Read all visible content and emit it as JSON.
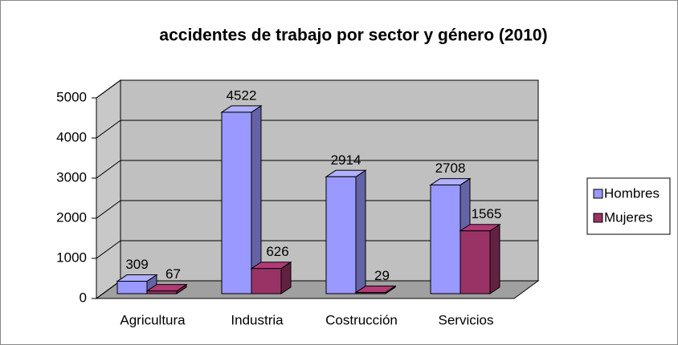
{
  "chart_data": {
    "type": "bar3d",
    "title": "accidentes de trabajo por sector y género (2010)",
    "categories": [
      "Agricultura",
      "Industria",
      "Costrucción",
      "Servicios"
    ],
    "series": [
      {
        "name": "Hombres",
        "color": "#9999ff",
        "values": [
          309,
          4522,
          2914,
          2708
        ]
      },
      {
        "name": "Mujeres",
        "color": "#993366",
        "values": [
          67,
          626,
          29,
          1565
        ]
      }
    ],
    "ylim": [
      0,
      5000
    ],
    "yticks": [
      0,
      1000,
      2000,
      3000,
      4000,
      5000
    ],
    "grid": true,
    "legend": "right"
  }
}
